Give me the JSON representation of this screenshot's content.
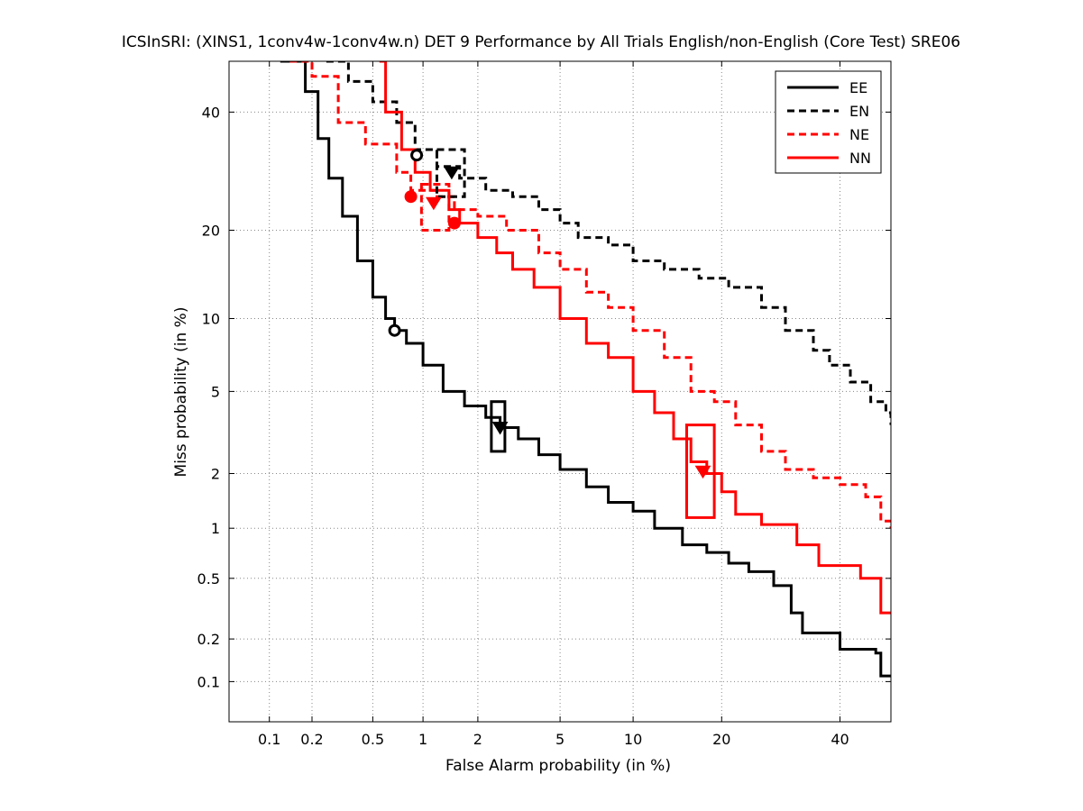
{
  "chart_data": {
    "type": "line",
    "title": "ICSInSRI: (XINS1, 1conv4w-1conv4w.n) DET 9 Performance by All Trials English/non-English (Core Test) SRE06",
    "xlabel": "False Alarm probability (in %)",
    "ylabel": "Miss probability (in %)",
    "xscale": "probit",
    "yscale": "probit",
    "xlim": [
      0.05,
      50
    ],
    "ylim": [
      0.05,
      50
    ],
    "xticks": [
      0.1,
      0.2,
      0.5,
      1,
      2,
      5,
      10,
      20,
      40
    ],
    "xtick_labels": [
      "0.1",
      "0.2",
      "0.5",
      "1",
      "2",
      "5",
      "10",
      "20",
      "40"
    ],
    "yticks": [
      0.1,
      0.2,
      0.5,
      1,
      2,
      5,
      10,
      20,
      40
    ],
    "ytick_labels": [
      "0.1",
      "0.2",
      "0.5",
      "1",
      "2",
      "5",
      "10",
      "20",
      "40"
    ],
    "grid": true,
    "legend_position": "top-right",
    "series": [
      {
        "name": "EE",
        "color": "#000000",
        "dash": "solid",
        "points": [
          [
            0.12,
            50
          ],
          [
            0.18,
            44
          ],
          [
            0.22,
            35
          ],
          [
            0.26,
            28
          ],
          [
            0.32,
            22
          ],
          [
            0.4,
            16
          ],
          [
            0.5,
            12
          ],
          [
            0.6,
            10
          ],
          [
            0.68,
            9
          ],
          [
            0.8,
            8
          ],
          [
            1.0,
            6.5
          ],
          [
            1.3,
            5
          ],
          [
            1.7,
            4.3
          ],
          [
            2.2,
            3.8
          ],
          [
            2.6,
            3.4
          ],
          [
            3.2,
            3.0
          ],
          [
            4.0,
            2.5
          ],
          [
            5.0,
            2.1
          ],
          [
            6.5,
            1.7
          ],
          [
            8.0,
            1.4
          ],
          [
            10,
            1.25
          ],
          [
            12,
            1.0
          ],
          [
            15,
            0.8
          ],
          [
            18,
            0.72
          ],
          [
            21,
            0.62
          ],
          [
            24,
            0.55
          ],
          [
            28,
            0.45
          ],
          [
            31,
            0.3
          ],
          [
            33,
            0.22
          ],
          [
            40,
            0.17
          ],
          [
            47,
            0.16
          ],
          [
            48,
            0.11
          ],
          [
            50,
            0.11
          ]
        ]
      },
      {
        "name": "EN",
        "color": "#000000",
        "dash": "dashed",
        "points": [
          [
            0.25,
            50
          ],
          [
            0.35,
            46
          ],
          [
            0.5,
            42
          ],
          [
            0.7,
            38
          ],
          [
            0.9,
            33
          ],
          [
            1.2,
            30
          ],
          [
            1.6,
            28
          ],
          [
            2.2,
            26
          ],
          [
            3.0,
            25
          ],
          [
            4.0,
            23
          ],
          [
            5.0,
            21
          ],
          [
            6.0,
            19
          ],
          [
            8.0,
            18
          ],
          [
            10,
            16
          ],
          [
            13,
            15
          ],
          [
            17,
            14
          ],
          [
            21,
            13
          ],
          [
            26,
            11
          ],
          [
            30,
            9
          ],
          [
            35,
            7.5
          ],
          [
            38,
            6.5
          ],
          [
            42,
            5.5
          ],
          [
            46,
            4.5
          ],
          [
            49,
            4.0
          ],
          [
            50,
            3.5
          ]
        ]
      },
      {
        "name": "NE",
        "color": "#ff0000",
        "dash": "dashed",
        "points": [
          [
            0.14,
            50
          ],
          [
            0.2,
            47
          ],
          [
            0.3,
            38
          ],
          [
            0.45,
            34
          ],
          [
            0.7,
            29
          ],
          [
            0.85,
            26
          ],
          [
            1.2,
            25
          ],
          [
            1.5,
            23
          ],
          [
            2.0,
            22
          ],
          [
            2.8,
            20
          ],
          [
            4.0,
            17
          ],
          [
            5.0,
            15
          ],
          [
            6.5,
            12.5
          ],
          [
            8.0,
            11
          ],
          [
            10,
            9
          ],
          [
            13,
            7
          ],
          [
            16,
            5
          ],
          [
            19,
            4.5
          ],
          [
            22,
            3.5
          ],
          [
            26,
            2.6
          ],
          [
            30,
            2.1
          ],
          [
            35,
            1.9
          ],
          [
            40,
            1.75
          ],
          [
            45,
            1.5
          ],
          [
            48,
            1.1
          ],
          [
            50,
            1.0
          ]
        ]
      },
      {
        "name": "NN",
        "color": "#ff0000",
        "dash": "solid",
        "points": [
          [
            0.55,
            50
          ],
          [
            0.6,
            40
          ],
          [
            0.75,
            33
          ],
          [
            0.9,
            29
          ],
          [
            1.1,
            26
          ],
          [
            1.4,
            23
          ],
          [
            1.6,
            21
          ],
          [
            2.0,
            19
          ],
          [
            2.5,
            17
          ],
          [
            3.0,
            15
          ],
          [
            3.8,
            13
          ],
          [
            5.0,
            10
          ],
          [
            6.5,
            8.0
          ],
          [
            8.0,
            7.0
          ],
          [
            10,
            5.0
          ],
          [
            12,
            4.0
          ],
          [
            14,
            3.0
          ],
          [
            16,
            2.3
          ],
          [
            18,
            2.0
          ],
          [
            20,
            1.6
          ],
          [
            22,
            1.2
          ],
          [
            26,
            1.05
          ],
          [
            32,
            0.8
          ],
          [
            36,
            0.6
          ],
          [
            44,
            0.5
          ],
          [
            48,
            0.3
          ],
          [
            50,
            0.3
          ]
        ]
      }
    ],
    "markers": [
      {
        "series": "EE",
        "shape": "circle",
        "x": 0.68,
        "y": 9.0
      },
      {
        "series": "EE",
        "shape": "triangle",
        "x": 2.6,
        "y": 3.4
      },
      {
        "series": "EN",
        "shape": "circle",
        "x": 0.92,
        "y": 32
      },
      {
        "series": "EN",
        "shape": "triangle",
        "x": 1.45,
        "y": 29
      },
      {
        "series": "NE",
        "shape": "circle",
        "x": 0.85,
        "y": 25
      },
      {
        "series": "NE",
        "shape": "triangle",
        "x": 1.15,
        "y": 24
      },
      {
        "series": "NN",
        "shape": "circle",
        "x": 1.5,
        "y": 21
      },
      {
        "series": "NN",
        "shape": "triangle",
        "x": 17.5,
        "y": 2.05
      }
    ],
    "confidence_boxes": [
      {
        "series": "EE",
        "x": [
          2.35,
          2.75
        ],
        "y": [
          2.6,
          4.5
        ]
      },
      {
        "series": "EN",
        "x": [
          1.2,
          1.7
        ],
        "y": [
          25,
          33
        ]
      },
      {
        "series": "NE",
        "x": [
          0.98,
          1.4
        ],
        "y": [
          20,
          27
        ]
      },
      {
        "series": "NN",
        "x": [
          15.5,
          19
        ],
        "y": [
          1.15,
          3.5
        ]
      }
    ]
  }
}
